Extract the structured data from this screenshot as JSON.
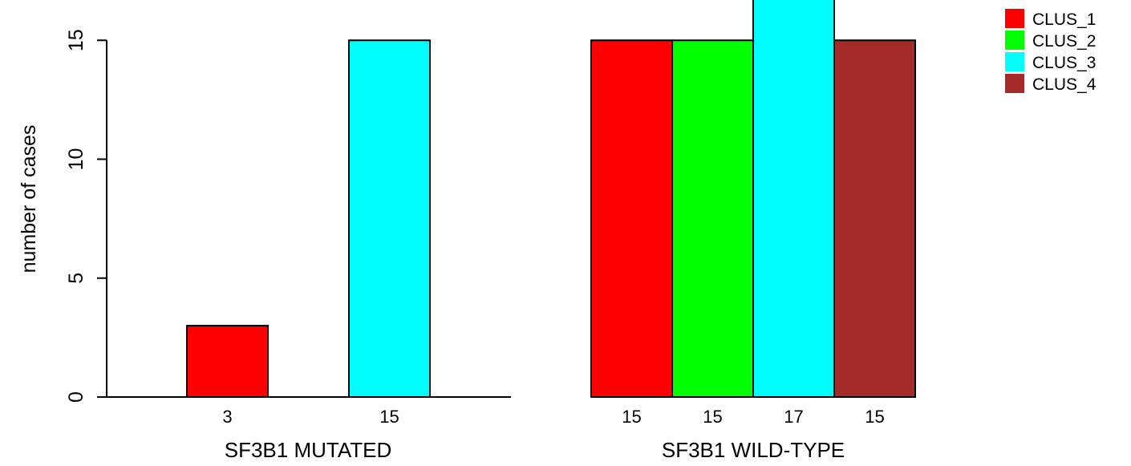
{
  "chart_data": {
    "type": "bar",
    "ylabel": "number of cases",
    "ylim": [
      0,
      17
    ],
    "yticks": [
      0,
      5,
      10,
      15
    ],
    "legend_position": "top-right",
    "series": [
      {
        "name": "CLUS_1",
        "color": "#FF0000"
      },
      {
        "name": "CLUS_2",
        "color": "#00FF00"
      },
      {
        "name": "CLUS_3",
        "color": "#00FFFF"
      },
      {
        "name": "CLUS_4",
        "color": "#A52A2A"
      }
    ],
    "groups": [
      {
        "label": "SF3B1 MUTATED",
        "bars": [
          {
            "cluster": "CLUS_1",
            "value": 3,
            "label": "3"
          },
          {
            "cluster": "CLUS_3",
            "value": 15,
            "label": "15"
          }
        ]
      },
      {
        "label": "SF3B1 WILD-TYPE",
        "bars": [
          {
            "cluster": "CLUS_1",
            "value": 15,
            "label": "15"
          },
          {
            "cluster": "CLUS_2",
            "value": 15,
            "label": "15"
          },
          {
            "cluster": "CLUS_3",
            "value": 17,
            "label": "17"
          },
          {
            "cluster": "CLUS_4",
            "value": 15,
            "label": "15"
          }
        ]
      }
    ]
  }
}
